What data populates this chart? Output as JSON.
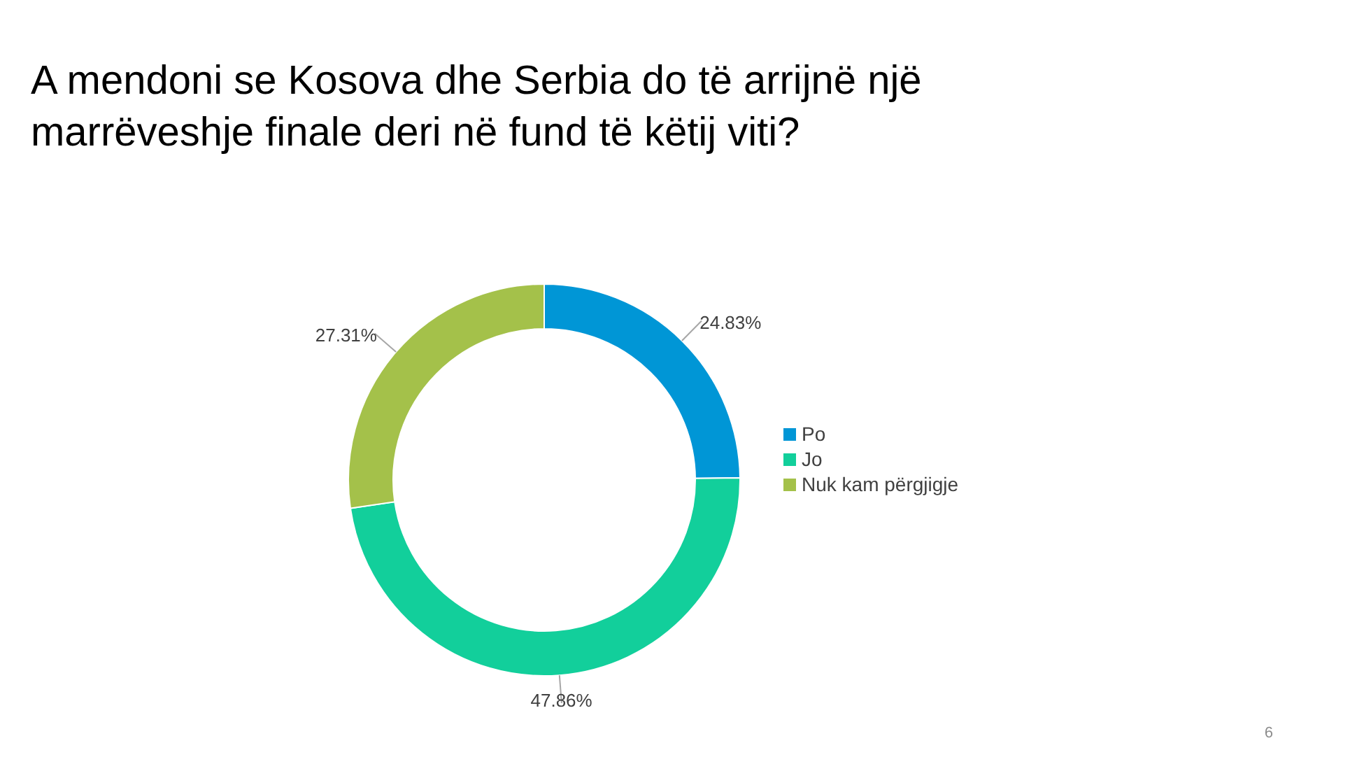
{
  "chart_data": {
    "type": "donut",
    "title": "A mendoni se Kosova dhe Serbia do të arrijnë një marrëveshje finale deri në fund të këtij viti?",
    "categories": [
      "Po",
      "Jo",
      "Nuk kam përgjigje"
    ],
    "values": [
      24.83,
      47.86,
      27.31
    ],
    "colors": [
      "#0096d6",
      "#12cf9b",
      "#a4c14a"
    ],
    "value_labels": [
      "24.83%",
      "47.86%",
      "27.31%"
    ],
    "legend": "right",
    "annotations": [
      "6"
    ]
  }
}
